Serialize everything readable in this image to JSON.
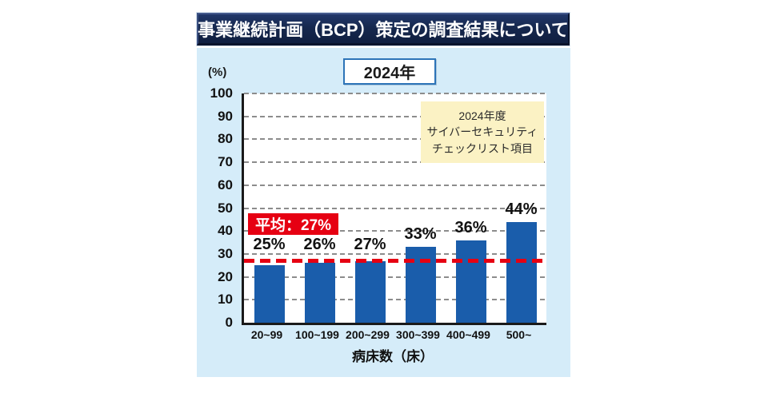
{
  "header": {
    "title": "事業継続計画（BCP）策定の調査結果について"
  },
  "chart_data": {
    "type": "bar",
    "title": "事業継続計画（BCP）策定の調査結果について",
    "year_label": "2024年",
    "y_unit": "(%)",
    "xlabel": "病床数（床）",
    "ylabel": "(%)",
    "ylim": [
      0,
      100
    ],
    "y_ticks": [
      0,
      10,
      20,
      30,
      40,
      50,
      60,
      70,
      80,
      90,
      100
    ],
    "grid": "dashed",
    "legend_position": "none",
    "categories": [
      "20~99",
      "100~199",
      "200~299",
      "300~399",
      "400~499",
      "500~"
    ],
    "values": [
      25,
      26,
      27,
      33,
      36,
      44
    ],
    "value_labels": [
      "25%",
      "26%",
      "27%",
      "33%",
      "36%",
      "44%"
    ],
    "average": 27,
    "average_label": "平均：27%",
    "annotation": {
      "lines": [
        "2024年度",
        "サイバーセキュリティ",
        "チェックリスト項目"
      ]
    },
    "colors": {
      "bar": "#1a5dab",
      "average_line": "#e60012",
      "average_box_bg": "#e60012",
      "panel_bg": "#d5ecf9",
      "header_bg": "#16284e",
      "annotation_bg": "#fbf2c4",
      "gridline": "#8c8c8c",
      "axis": "#1a1a1a"
    }
  }
}
